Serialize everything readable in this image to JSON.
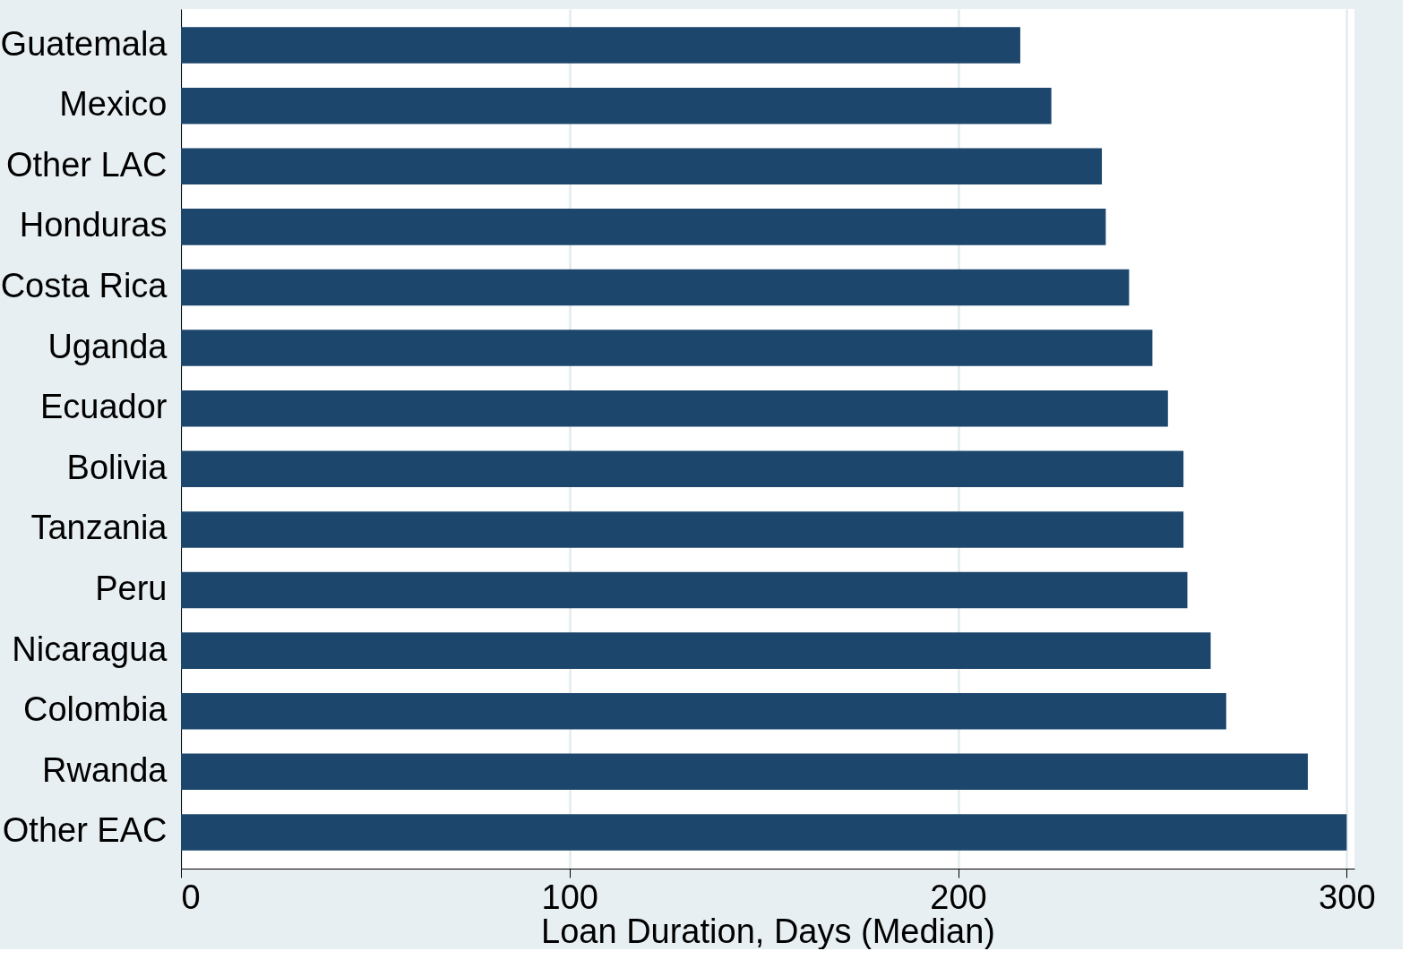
{
  "chart_data": {
    "type": "bar",
    "orientation": "horizontal",
    "xlabel": "Loan Duration, Days (Median)",
    "categories": [
      "Guatemala",
      "Mexico",
      "Other LAC",
      "Honduras",
      "Costa Rica",
      "Uganda",
      "Ecuador",
      "Bolivia",
      "Tanzania",
      "Peru",
      "Nicaragua",
      "Colombia",
      "Rwanda",
      "Other EAC"
    ],
    "values": [
      216,
      224,
      237,
      238,
      244,
      250,
      254,
      258,
      258,
      259,
      265,
      269,
      290,
      300
    ],
    "color": "#1c466c",
    "xlim": [
      0,
      302
    ],
    "xticks": [
      0,
      100,
      200,
      300
    ],
    "grid": "x"
  }
}
